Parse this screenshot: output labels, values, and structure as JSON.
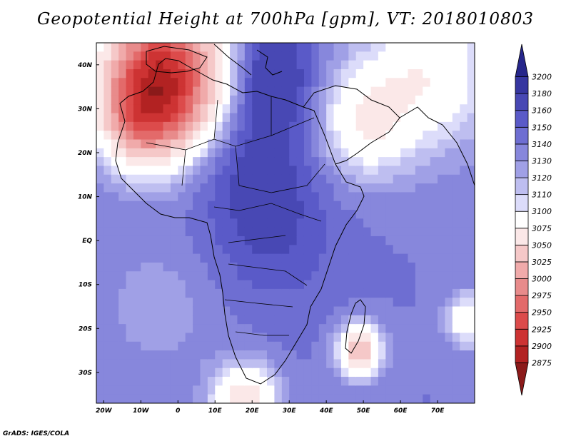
{
  "title": "Geopotential Height at 700hPa [gpm], VT: 2018010803",
  "credit": "GrADS: IGES/COLA",
  "map": {
    "lon_range": [
      -22,
      80
    ],
    "lat_range": [
      -37,
      45
    ],
    "lon_ticks": [
      {
        "value": -20,
        "label": "20W"
      },
      {
        "value": -10,
        "label": "10W"
      },
      {
        "value": 0,
        "label": "0"
      },
      {
        "value": 10,
        "label": "10E"
      },
      {
        "value": 20,
        "label": "20E"
      },
      {
        "value": 30,
        "label": "30E"
      },
      {
        "value": 40,
        "label": "40E"
      },
      {
        "value": 50,
        "label": "50E"
      },
      {
        "value": 60,
        "label": "60E"
      },
      {
        "value": 70,
        "label": "70E"
      }
    ],
    "lat_ticks": [
      {
        "value": 40,
        "label": "40N"
      },
      {
        "value": 30,
        "label": "30N"
      },
      {
        "value": 20,
        "label": "20N"
      },
      {
        "value": 10,
        "label": "10N"
      },
      {
        "value": 0,
        "label": "EQ"
      },
      {
        "value": -10,
        "label": "10S"
      },
      {
        "value": -20,
        "label": "20S"
      },
      {
        "value": -30,
        "label": "30S"
      }
    ]
  },
  "colorbar": {
    "levels": [
      "2875",
      "2900",
      "2925",
      "2950",
      "2975",
      "3000",
      "3025",
      "3050",
      "3075",
      "3100",
      "3110",
      "3120",
      "3130",
      "3140",
      "3150",
      "3160",
      "3180",
      "3200"
    ],
    "colors": [
      "#8b1a1a",
      "#b22222",
      "#cd3333",
      "#dc4b4b",
      "#e36a6a",
      "#e88b8b",
      "#f0aaaa",
      "#f5c8c8",
      "#fbe8e8",
      "#ffffff",
      "#dcdcfa",
      "#bebef0",
      "#a0a0e6",
      "#8787dc",
      "#6e6ed2",
      "#5a5ac8",
      "#4848b4",
      "#3636a0",
      "#26268a"
    ]
  },
  "field": {
    "background_value": 3140,
    "features": [
      {
        "name": "iberia-low",
        "lon": -4,
        "lat": 37,
        "value": 2900,
        "spread": 11
      },
      {
        "name": "atlantic-coast",
        "lon": -10,
        "lat": 27,
        "value": 3060,
        "spread": 7
      },
      {
        "name": "mediterranean-high",
        "lon": 25,
        "lat": 38,
        "value": 3175,
        "spread": 8
      },
      {
        "name": "sahara-high",
        "lon": 20,
        "lat": 22,
        "value": 3165,
        "spread": 12
      },
      {
        "name": "central-africa",
        "lon": 25,
        "lat": 2,
        "value": 3160,
        "spread": 12
      },
      {
        "name": "arabia-low",
        "lon": 50,
        "lat": 27,
        "value": 3080,
        "spread": 9
      },
      {
        "name": "asia-ridge",
        "lon": 68,
        "lat": 38,
        "value": 3080,
        "spread": 12
      },
      {
        "name": "madagascar-low",
        "lon": 49,
        "lat": -25,
        "value": 3030,
        "spread": 4
      },
      {
        "name": "south-atlantic-ridge",
        "lon": -5,
        "lat": -15,
        "value": 3125,
        "spread": 12
      },
      {
        "name": "cape-trough",
        "lon": 18,
        "lat": -37,
        "value": 3050,
        "spread": 6
      },
      {
        "name": "indian-ocean-east",
        "lon": 78,
        "lat": -18,
        "value": 3075,
        "spread": 4
      }
    ]
  }
}
